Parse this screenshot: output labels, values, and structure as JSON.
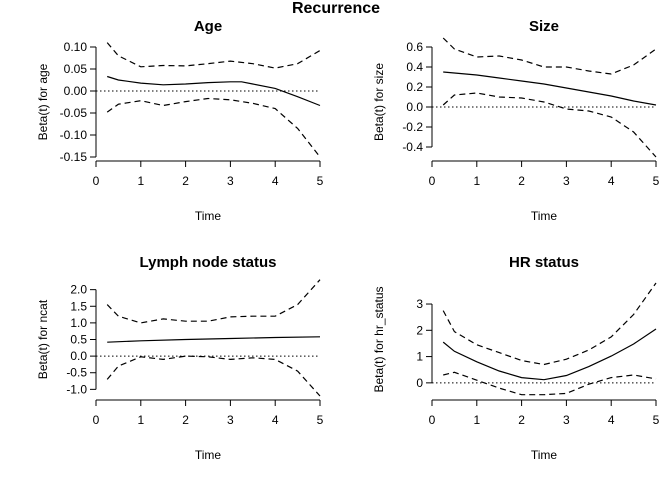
{
  "figure": {
    "title": "Recurrence"
  },
  "chart_data": [
    {
      "type": "line",
      "title": "Age",
      "xlabel": "Time",
      "ylabel": "Beta(t) for age",
      "xlim": [
        0,
        5
      ],
      "ylim": [
        -0.15,
        0.1
      ],
      "xticks": [
        0,
        1,
        2,
        3,
        4,
        5
      ],
      "yticks": [
        -0.15,
        -0.1,
        -0.05,
        0.0,
        0.05,
        0.1
      ],
      "ytick_labels": [
        "-0.15",
        "-0.10",
        "-0.05",
        "0.00",
        "0.05",
        "0.10"
      ],
      "reference_line": 0,
      "series": [
        {
          "style": "solid",
          "x": [
            0.25,
            0.5,
            1,
            1.5,
            2,
            2.5,
            3,
            3.25,
            3.5,
            4,
            4.5,
            5
          ],
          "y": [
            0.033,
            0.025,
            0.018,
            0.014,
            0.016,
            0.019,
            0.021,
            0.021,
            0.016,
            0.006,
            -0.013,
            -0.033
          ]
        },
        {
          "style": "dashed",
          "x": [
            0.25,
            0.5,
            1,
            1.5,
            2,
            2.5,
            3,
            3.5,
            4,
            4.5,
            5
          ],
          "y": [
            0.11,
            0.08,
            0.055,
            0.058,
            0.057,
            0.062,
            0.068,
            0.062,
            0.052,
            0.062,
            0.092
          ]
        },
        {
          "style": "dashed",
          "x": [
            0.25,
            0.5,
            1,
            1.5,
            2,
            2.5,
            3,
            3.5,
            4,
            4.5,
            5
          ],
          "y": [
            -0.048,
            -0.03,
            -0.022,
            -0.033,
            -0.024,
            -0.017,
            -0.02,
            -0.028,
            -0.04,
            -0.085,
            -0.15
          ]
        }
      ]
    },
    {
      "type": "line",
      "title": "Size",
      "xlabel": "Time",
      "ylabel": "Beta(t) for size",
      "xlim": [
        0,
        5
      ],
      "ylim": [
        -0.5,
        0.6
      ],
      "xticks": [
        0,
        1,
        2,
        3,
        4,
        5
      ],
      "yticks": [
        -0.4,
        -0.2,
        0.0,
        0.2,
        0.4,
        0.6
      ],
      "ytick_labels": [
        "-0.4",
        "-0.2",
        "0.0",
        "0.2",
        "0.4",
        "0.6"
      ],
      "reference_line": 0,
      "series": [
        {
          "style": "solid",
          "x": [
            0.25,
            0.5,
            1,
            1.5,
            2,
            2.5,
            3,
            3.5,
            4,
            4.5,
            5
          ],
          "y": [
            0.35,
            0.34,
            0.32,
            0.29,
            0.26,
            0.23,
            0.19,
            0.15,
            0.11,
            0.06,
            0.02
          ]
        },
        {
          "style": "dashed",
          "x": [
            0.25,
            0.5,
            1,
            1.5,
            2,
            2.5,
            3,
            3.5,
            4,
            4.5,
            5
          ],
          "y": [
            0.69,
            0.58,
            0.5,
            0.51,
            0.47,
            0.4,
            0.4,
            0.36,
            0.33,
            0.42,
            0.58
          ]
        },
        {
          "style": "dashed",
          "x": [
            0.25,
            0.5,
            1,
            1.5,
            2,
            2.5,
            3,
            3.5,
            4,
            4.5,
            5
          ],
          "y": [
            0.02,
            0.12,
            0.14,
            0.1,
            0.09,
            0.05,
            -0.02,
            -0.04,
            -0.1,
            -0.25,
            -0.5
          ]
        }
      ]
    },
    {
      "type": "line",
      "title": "Lymph node status",
      "xlabel": "Time",
      "ylabel": "Beta(t) for ncat",
      "xlim": [
        0,
        5
      ],
      "ylim": [
        -1.2,
        2.2
      ],
      "xticks": [
        0,
        1,
        2,
        3,
        4,
        5
      ],
      "yticks": [
        -1.0,
        -0.5,
        0.0,
        0.5,
        1.0,
        1.5,
        2.0
      ],
      "ytick_labels": [
        "-1.0",
        "-0.5",
        "0.0",
        "0.5",
        "1.0",
        "1.5",
        "2.0"
      ],
      "reference_line": 0,
      "series": [
        {
          "style": "solid",
          "x": [
            0.25,
            1,
            2,
            3,
            4,
            5
          ],
          "y": [
            0.42,
            0.46,
            0.5,
            0.53,
            0.56,
            0.58
          ]
        },
        {
          "style": "dashed",
          "x": [
            0.25,
            0.5,
            1,
            1.5,
            2,
            2.5,
            3,
            3.5,
            4,
            4.5,
            5
          ],
          "y": [
            1.55,
            1.2,
            1.0,
            1.12,
            1.05,
            1.05,
            1.18,
            1.2,
            1.2,
            1.55,
            2.3
          ]
        },
        {
          "style": "dashed",
          "x": [
            0.25,
            0.5,
            1,
            1.5,
            2,
            2.5,
            3,
            3.5,
            4,
            4.5,
            5
          ],
          "y": [
            -0.7,
            -0.3,
            -0.02,
            -0.1,
            0.0,
            -0.02,
            -0.1,
            -0.05,
            -0.1,
            -0.45,
            -1.2
          ]
        }
      ]
    },
    {
      "type": "line",
      "title": "HR status",
      "xlabel": "Time",
      "ylabel": "Beta(t) for hr_status",
      "xlim": [
        0,
        5
      ],
      "ylim": [
        -0.5,
        3.8
      ],
      "xticks": [
        0,
        1,
        2,
        3,
        4,
        5
      ],
      "yticks": [
        0,
        1,
        2,
        3
      ],
      "ytick_labels": [
        "0",
        "1",
        "2",
        "3"
      ],
      "reference_line": 0,
      "series": [
        {
          "style": "solid",
          "x": [
            0.25,
            0.5,
            1,
            1.5,
            2,
            2.5,
            3,
            3.5,
            4,
            4.5,
            5
          ],
          "y": [
            1.55,
            1.2,
            0.8,
            0.45,
            0.2,
            0.12,
            0.28,
            0.62,
            1.02,
            1.48,
            2.05
          ]
        },
        {
          "style": "dashed",
          "x": [
            0.25,
            0.5,
            1,
            1.5,
            2,
            2.5,
            3,
            3.5,
            4,
            4.5,
            5
          ],
          "y": [
            2.75,
            1.95,
            1.45,
            1.15,
            0.85,
            0.7,
            0.9,
            1.25,
            1.75,
            2.6,
            3.8
          ]
        },
        {
          "style": "dashed",
          "x": [
            0.25,
            0.5,
            1,
            1.5,
            2,
            2.5,
            3,
            3.5,
            4,
            4.5,
            5
          ],
          "y": [
            0.3,
            0.4,
            0.1,
            -0.2,
            -0.45,
            -0.45,
            -0.4,
            -0.05,
            0.2,
            0.3,
            0.15
          ]
        }
      ]
    }
  ]
}
